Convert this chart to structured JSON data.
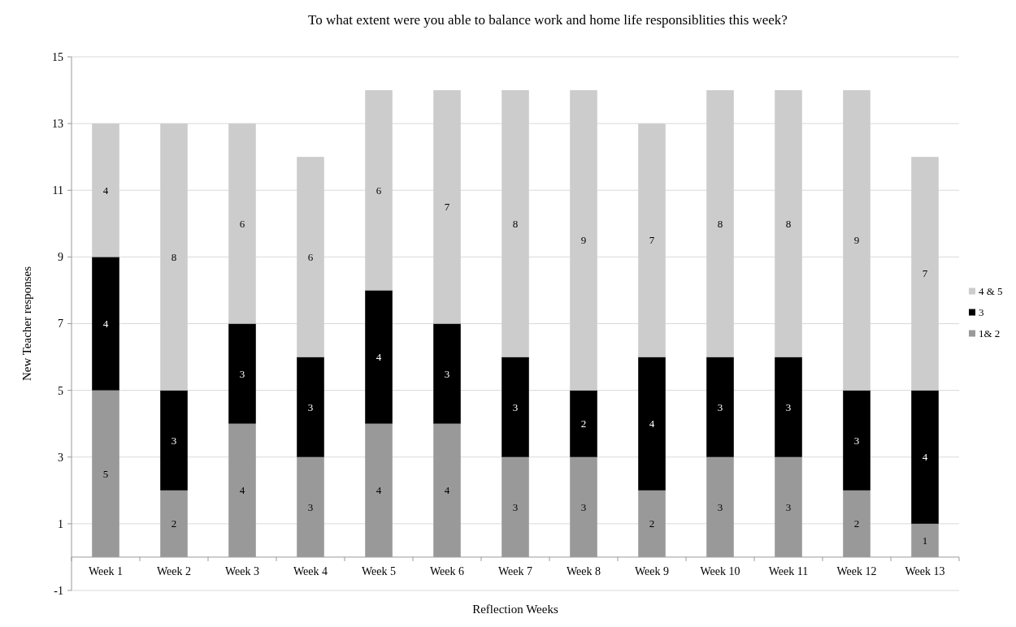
{
  "chart_data": {
    "type": "bar",
    "stacked": true,
    "title": "To what extent were you able to balance work and home life responsiblities this week?",
    "xlabel": "Reflection Weeks",
    "ylabel": "New Teacher responses",
    "categories": [
      "Week 1",
      "Week 2",
      "Week 3",
      "Week 4",
      "Week 5",
      "Week 6",
      "Week 7",
      "Week 8",
      "Week 9",
      "Week 10",
      "Week 11",
      "Week 12",
      "Week 13"
    ],
    "series": [
      {
        "name": "1& 2",
        "color": "#999999",
        "values": [
          5,
          2,
          4,
          3,
          4,
          4,
          3,
          3,
          2,
          3,
          3,
          2,
          1
        ]
      },
      {
        "name": "3",
        "color": "#000000",
        "values": [
          4,
          3,
          3,
          3,
          4,
          3,
          3,
          2,
          4,
          3,
          3,
          3,
          4
        ]
      },
      {
        "name": "4 & 5",
        "color": "#cccccc",
        "values": [
          4,
          8,
          6,
          6,
          6,
          7,
          8,
          9,
          7,
          8,
          8,
          9,
          7
        ]
      }
    ],
    "ylim": [
      -1,
      15
    ],
    "yticks": [
      -1,
      1,
      3,
      5,
      7,
      9,
      11,
      13,
      15
    ],
    "grid": "y",
    "legend": "right",
    "data_labels": true
  }
}
